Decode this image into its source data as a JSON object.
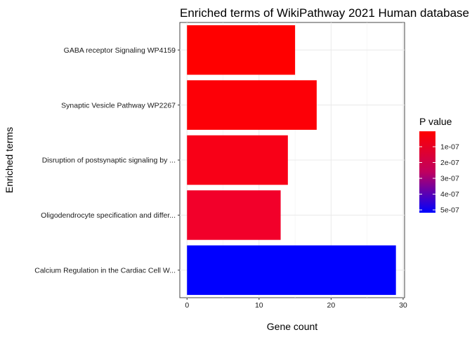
{
  "chart_data": {
    "type": "bar",
    "orientation": "horizontal",
    "title": "Enriched terms of WikiPathway 2021 Human database",
    "xlabel": "Gene count",
    "ylabel": "Enriched terms",
    "xlim": [
      -1,
      30.2
    ],
    "x_ticks": [
      0,
      10,
      20,
      30
    ],
    "grid": true,
    "categories": [
      "GABA receptor Signaling WP4159",
      "Synaptic Vesicle Pathway WP2267",
      "Disruption of postsynaptic signaling by ...",
      "Oligodendrocyte specification and differ...",
      "Calcium Regulation in the Cardiac Cell W..."
    ],
    "values": [
      15,
      18,
      14,
      13,
      29
    ],
    "colors": [
      "#ff0000",
      "#fd0007",
      "#f80017",
      "#f2002a",
      "#0000ff"
    ],
    "legend": {
      "title": "P value",
      "position": "right",
      "type": "colorbar",
      "low_color": "#ff0000",
      "high_color": "#0000ff",
      "ticks": [
        "1e-07",
        "2e-07",
        "3e-07",
        "4e-07",
        "5e-07"
      ]
    }
  }
}
